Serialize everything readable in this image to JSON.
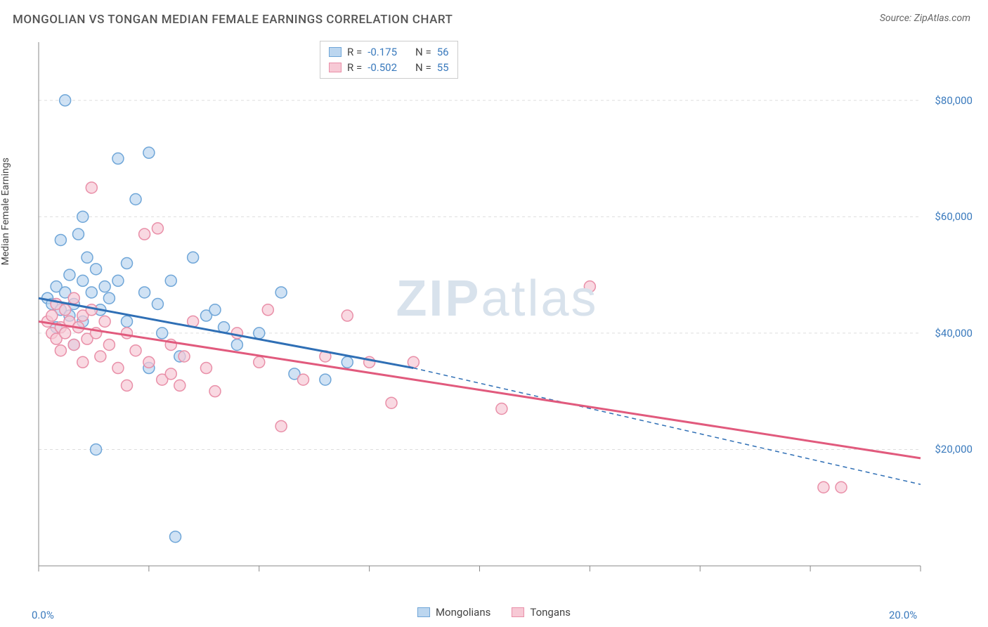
{
  "title": "MONGOLIAN VS TONGAN MEDIAN FEMALE EARNINGS CORRELATION CHART",
  "source": "Source: ZipAtlas.com",
  "y_axis_label": "Median Female Earnings",
  "watermark_a": "ZIP",
  "watermark_b": "atlas",
  "chart": {
    "type": "scatter",
    "xlim": [
      0,
      20
    ],
    "ylim": [
      0,
      90000
    ],
    "x_ticks": [
      0,
      2.5,
      5,
      7.5,
      10,
      12.5,
      15,
      17.5,
      20
    ],
    "x_tick_labels": {
      "0": "0.0%",
      "20": "20.0%"
    },
    "y_gridlines": [
      20000,
      40000,
      60000,
      80000
    ],
    "y_tick_labels": {
      "20000": "$20,000",
      "40000": "$40,000",
      "60000": "$60,000",
      "80000": "$80,000"
    },
    "background_color": "#ffffff",
    "grid_color": "#dddddd",
    "axis_color": "#888888",
    "marker_radius": 8,
    "marker_stroke_width": 1.5,
    "series": [
      {
        "name": "Mongolians",
        "fill": "#bcd6ef",
        "stroke": "#6fa6d8",
        "line_color": "#2f6fb5",
        "R": "-0.175",
        "N": "56",
        "trend_solid": {
          "x1": 0,
          "y1": 46000,
          "x2": 8.5,
          "y2": 34000
        },
        "trend_dash": {
          "x1": 8.5,
          "y1": 34000,
          "x2": 20,
          "y2": 14000
        },
        "points": [
          [
            0.2,
            46000
          ],
          [
            0.3,
            45000
          ],
          [
            0.4,
            48000
          ],
          [
            0.4,
            41000
          ],
          [
            0.5,
            56000
          ],
          [
            0.5,
            44000
          ],
          [
            0.6,
            80000
          ],
          [
            0.6,
            47000
          ],
          [
            0.7,
            50000
          ],
          [
            0.7,
            43000
          ],
          [
            0.8,
            45000
          ],
          [
            0.8,
            38000
          ],
          [
            0.9,
            57000
          ],
          [
            1.0,
            60000
          ],
          [
            1.0,
            49000
          ],
          [
            1.0,
            42000
          ],
          [
            1.1,
            53000
          ],
          [
            1.2,
            47000
          ],
          [
            1.3,
            20000
          ],
          [
            1.3,
            51000
          ],
          [
            1.4,
            44000
          ],
          [
            1.5,
            48000
          ],
          [
            1.6,
            46000
          ],
          [
            1.8,
            70000
          ],
          [
            1.8,
            49000
          ],
          [
            2.0,
            52000
          ],
          [
            2.0,
            42000
          ],
          [
            2.2,
            63000
          ],
          [
            2.4,
            47000
          ],
          [
            2.5,
            71000
          ],
          [
            2.5,
            34000
          ],
          [
            2.7,
            45000
          ],
          [
            2.8,
            40000
          ],
          [
            3.0,
            49000
          ],
          [
            3.1,
            5000
          ],
          [
            3.2,
            36000
          ],
          [
            3.5,
            53000
          ],
          [
            3.8,
            43000
          ],
          [
            4.0,
            44000
          ],
          [
            4.2,
            41000
          ],
          [
            4.5,
            38000
          ],
          [
            5.0,
            40000
          ],
          [
            5.5,
            47000
          ],
          [
            5.8,
            33000
          ],
          [
            6.5,
            32000
          ],
          [
            7.0,
            35000
          ]
        ]
      },
      {
        "name": "Tongans",
        "fill": "#f7c9d5",
        "stroke": "#e98fa8",
        "line_color": "#e15a7d",
        "R": "-0.502",
        "N": "55",
        "trend_solid": {
          "x1": 0,
          "y1": 42000,
          "x2": 20,
          "y2": 18500
        },
        "trend_dash": null,
        "points": [
          [
            0.2,
            42000
          ],
          [
            0.3,
            40000
          ],
          [
            0.3,
            43000
          ],
          [
            0.4,
            39000
          ],
          [
            0.4,
            45000
          ],
          [
            0.5,
            41000
          ],
          [
            0.5,
            37000
          ],
          [
            0.6,
            44000
          ],
          [
            0.6,
            40000
          ],
          [
            0.7,
            42000
          ],
          [
            0.8,
            38000
          ],
          [
            0.8,
            46000
          ],
          [
            0.9,
            41000
          ],
          [
            1.0,
            43000
          ],
          [
            1.0,
            35000
          ],
          [
            1.1,
            39000
          ],
          [
            1.2,
            44000
          ],
          [
            1.2,
            65000
          ],
          [
            1.3,
            40000
          ],
          [
            1.4,
            36000
          ],
          [
            1.5,
            42000
          ],
          [
            1.6,
            38000
          ],
          [
            1.8,
            34000
          ],
          [
            2.0,
            40000
          ],
          [
            2.0,
            31000
          ],
          [
            2.2,
            37000
          ],
          [
            2.4,
            57000
          ],
          [
            2.5,
            35000
          ],
          [
            2.7,
            58000
          ],
          [
            2.8,
            32000
          ],
          [
            3.0,
            38000
          ],
          [
            3.0,
            33000
          ],
          [
            3.2,
            31000
          ],
          [
            3.3,
            36000
          ],
          [
            3.5,
            42000
          ],
          [
            3.8,
            34000
          ],
          [
            4.0,
            30000
          ],
          [
            4.5,
            40000
          ],
          [
            5.0,
            35000
          ],
          [
            5.2,
            44000
          ],
          [
            5.5,
            24000
          ],
          [
            6.0,
            32000
          ],
          [
            6.5,
            36000
          ],
          [
            7.0,
            43000
          ],
          [
            7.5,
            35000
          ],
          [
            8.0,
            28000
          ],
          [
            8.5,
            35000
          ],
          [
            10.5,
            27000
          ],
          [
            12.5,
            48000
          ],
          [
            17.8,
            13500
          ],
          [
            18.2,
            13500
          ]
        ]
      }
    ]
  },
  "stats_labels": {
    "R": "R =",
    "N": "N ="
  },
  "legend": {
    "s1_label": "Mongolians",
    "s2_label": "Tongans"
  }
}
